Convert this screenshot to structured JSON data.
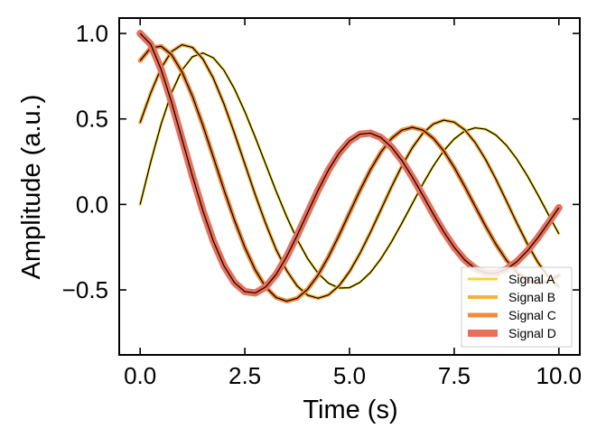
{
  "chart_data": {
    "type": "line",
    "xlabel": "Time (s)",
    "ylabel": "Amplitude (a.u.)",
    "xlim": [
      -0.5,
      10.5
    ],
    "ylim": [
      -0.88,
      1.09
    ],
    "x_ticks": [
      0.0,
      2.5,
      5.0,
      7.5,
      10.0
    ],
    "x_tick_labels": [
      "0.0",
      "2.5",
      "5.0",
      "7.5",
      "10.0"
    ],
    "y_ticks": [
      -0.5,
      0.0,
      0.5,
      1.0
    ],
    "y_tick_labels": [
      "−0.5",
      "0.0",
      "0.5",
      "1.0"
    ],
    "grid": false,
    "legend_position": "bottom-right",
    "x": [
      0,
      0.25,
      0.5,
      0.75,
      1,
      1.25,
      1.5,
      1.75,
      2,
      2.25,
      2.5,
      2.75,
      3,
      3.25,
      3.5,
      3.75,
      4,
      4.25,
      4.5,
      4.75,
      5,
      5.25,
      5.5,
      5.75,
      6,
      6.25,
      6.5,
      6.75,
      7,
      7.25,
      7.5,
      7.75,
      8,
      8.25,
      8.5,
      8.75,
      9,
      9.25,
      9.5,
      9.75,
      10
    ],
    "series": [
      {
        "name": "Signal A",
        "color": "#f5d53b",
        "values": [
          0.0,
          0.246,
          0.469,
          0.653,
          0.786,
          0.864,
          0.886,
          0.857,
          0.785,
          0.677,
          0.543,
          0.392,
          0.234,
          0.076,
          -0.072,
          -0.205,
          -0.317,
          -0.403,
          -0.461,
          -0.489,
          -0.487,
          -0.456,
          -0.398,
          -0.318,
          -0.22,
          -0.11,
          0.005,
          0.119,
          0.224,
          0.314,
          0.383,
          0.429,
          0.448,
          0.44,
          0.405,
          0.345,
          0.264,
          0.166,
          0.056,
          -0.059,
          -0.172
        ]
      },
      {
        "name": "Signal B",
        "color": "#f7b03e",
        "values": [
          0.479,
          0.65,
          0.797,
          0.894,
          0.934,
          0.918,
          0.85,
          0.737,
          0.589,
          0.418,
          0.237,
          0.056,
          -0.113,
          -0.265,
          -0.387,
          -0.477,
          -0.531,
          -0.549,
          -0.529,
          -0.476,
          -0.393,
          -0.286,
          -0.163,
          -0.031,
          0.101,
          0.225,
          0.332,
          0.416,
          0.47,
          0.493,
          0.481,
          0.437,
          0.362,
          0.263,
          0.146,
          0.019,
          -0.11,
          -0.232,
          -0.339,
          -0.424,
          -0.482
        ]
      },
      {
        "name": "Signal C",
        "color": "#f28c3a",
        "values": [
          0.841,
          0.915,
          0.925,
          0.876,
          0.775,
          0.632,
          0.461,
          0.275,
          0.087,
          -0.091,
          -0.251,
          -0.384,
          -0.484,
          -0.545,
          -0.566,
          -0.549,
          -0.496,
          -0.413,
          -0.305,
          -0.181,
          -0.049,
          0.082,
          0.203,
          0.306,
          0.385,
          0.434,
          0.451,
          0.435,
          0.387,
          0.313,
          0.217,
          0.106,
          -0.011,
          -0.127,
          -0.235,
          -0.327,
          -0.397,
          -0.443,
          -0.461,
          -0.451,
          -0.414
        ]
      },
      {
        "name": "Signal D",
        "color": "#e8705a",
        "values": [
          1.0,
          0.938,
          0.79,
          0.598,
          0.382,
          0.165,
          -0.038,
          -0.216,
          -0.358,
          -0.457,
          -0.51,
          -0.518,
          -0.482,
          -0.409,
          -0.305,
          -0.181,
          -0.048,
          0.083,
          0.202,
          0.3,
          0.371,
          0.411,
          0.417,
          0.391,
          0.336,
          0.257,
          0.16,
          0.053,
          -0.056,
          -0.16,
          -0.251,
          -0.324,
          -0.375,
          -0.401,
          -0.402,
          -0.379,
          -0.334,
          -0.271,
          -0.194,
          -0.108,
          -0.019
        ]
      }
    ]
  }
}
